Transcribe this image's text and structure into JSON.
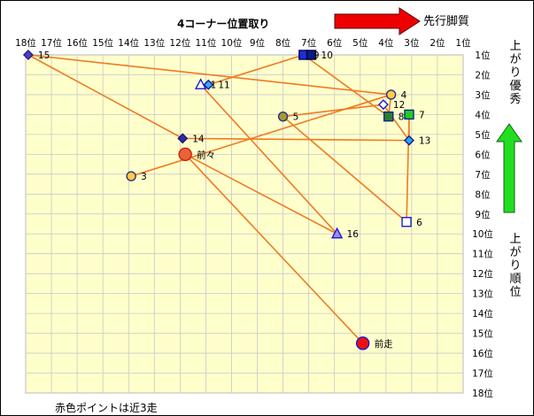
{
  "chart_data": {
    "type": "scatter",
    "title": "4コーナー位置取り",
    "x_axis": {
      "label": "先行脚質",
      "direction": "reversed",
      "ticks": [
        "18位",
        "17位",
        "16位",
        "15位",
        "14位",
        "13位",
        "12位",
        "11位",
        "10位",
        "9位",
        "8位",
        "7位",
        "6位",
        "5位",
        "4位",
        "3位",
        "2位",
        "1位"
      ],
      "range": [
        18,
        1
      ]
    },
    "y_axis": {
      "label_top": "上がり優秀",
      "label_bottom": "上がり順位",
      "direction": "reversed",
      "ticks": [
        "1位",
        "2位",
        "3位",
        "4位",
        "5位",
        "6位",
        "7位",
        "8位",
        "9位",
        "10位",
        "11位",
        "12位",
        "13位",
        "14位",
        "15位",
        "16位",
        "17位",
        "18位"
      ],
      "range": [
        1,
        18
      ]
    },
    "grid": true,
    "footnote": "赤色ポイントは近3走",
    "points": [
      {
        "label": "15",
        "x": 17.9,
        "y": 1.0,
        "marker": "diamond",
        "fill": "#4b3fbf",
        "stroke": "#2a2080"
      },
      {
        "label": "1",
        "x": 11.2,
        "y": 2.5,
        "marker": "triangle",
        "fill": "#ffffff",
        "stroke": "#1a1ad0"
      },
      {
        "label": "11",
        "x": 10.9,
        "y": 2.5,
        "marker": "diamond",
        "fill": "#33aaff",
        "stroke": "#1a1a90"
      },
      {
        "label": "9",
        "x": 7.2,
        "y": 1.0,
        "marker": "square",
        "fill": "#1a2fd0",
        "stroke": "#000066"
      },
      {
        "label": "10",
        "x": 6.9,
        "y": 1.0,
        "marker": "square",
        "fill": "#0a1a8a",
        "stroke": "#000033"
      },
      {
        "label": "4",
        "x": 3.8,
        "y": 3.0,
        "marker": "circle",
        "fill": "#ffcc44",
        "stroke": "#303080"
      },
      {
        "label": "12",
        "x": 4.1,
        "y": 3.5,
        "marker": "diamond",
        "fill": "#ffffff",
        "stroke": "#1a1ad0"
      },
      {
        "label": "8",
        "x": 3.9,
        "y": 4.1,
        "marker": "square",
        "fill": "#2e7d32",
        "stroke": "#0a2a80"
      },
      {
        "label": "7",
        "x": 3.1,
        "y": 4.0,
        "marker": "square",
        "fill": "#22cc22",
        "stroke": "#0a2a80"
      },
      {
        "label": "5",
        "x": 8.0,
        "y": 4.1,
        "marker": "circle",
        "fill": "#9e9e30",
        "stroke": "#303080"
      },
      {
        "label": "13",
        "x": 3.1,
        "y": 5.3,
        "marker": "diamond",
        "fill": "#22aaff",
        "stroke": "#1a1a90"
      },
      {
        "label": "14",
        "x": 11.9,
        "y": 5.2,
        "marker": "diamond",
        "fill": "#2b2bb0",
        "stroke": "#1a1a60"
      },
      {
        "label": "3",
        "x": 13.9,
        "y": 7.1,
        "marker": "circle",
        "fill": "#ffcc44",
        "stroke": "#303080"
      },
      {
        "label": "6",
        "x": 3.2,
        "y": 9.4,
        "marker": "square",
        "fill": "#ffffff",
        "stroke": "#1a1ad0"
      },
      {
        "label": "16",
        "x": 5.9,
        "y": 10.0,
        "marker": "triangle",
        "fill": "#9e8cff",
        "stroke": "#1a1ad0"
      },
      {
        "label": "前々",
        "x": 11.8,
        "y": 6.0,
        "marker": "circle-big",
        "fill": "#e8633a",
        "stroke": "#cc2200"
      },
      {
        "label": "前走",
        "x": 4.9,
        "y": 15.5,
        "marker": "circle-big",
        "fill": "#ee1111",
        "stroke": "#1a1ad0"
      }
    ],
    "lines": [
      [
        [
          17.9,
          1.0
        ],
        [
          3.8,
          3.0
        ]
      ],
      [
        [
          17.9,
          1.0
        ],
        [
          11.9,
          5.2
        ]
      ],
      [
        [
          11.9,
          5.2
        ],
        [
          3.1,
          5.3
        ]
      ],
      [
        [
          3.1,
          5.3
        ],
        [
          3.1,
          4.0
        ]
      ],
      [
        [
          3.1,
          4.0
        ],
        [
          3.2,
          9.4
        ]
      ],
      [
        [
          3.1,
          5.3
        ],
        [
          4.1,
          3.5
        ]
      ],
      [
        [
          4.1,
          3.5
        ],
        [
          8.0,
          4.1
        ]
      ],
      [
        [
          8.0,
          4.1
        ],
        [
          3.2,
          9.4
        ]
      ],
      [
        [
          3.8,
          3.0
        ],
        [
          13.9,
          7.1
        ]
      ],
      [
        [
          11.2,
          2.5
        ],
        [
          10.9,
          2.5
        ]
      ],
      [
        [
          10.9,
          2.5
        ],
        [
          7.2,
          1.0
        ]
      ],
      [
        [
          7.2,
          1.0
        ],
        [
          3.9,
          4.1
        ]
      ],
      [
        [
          3.9,
          4.1
        ],
        [
          3.8,
          3.0
        ]
      ],
      [
        [
          11.2,
          2.5
        ],
        [
          5.9,
          10.0
        ]
      ],
      [
        [
          11.8,
          6.0
        ],
        [
          5.9,
          10.0
        ]
      ],
      [
        [
          11.8,
          6.0
        ],
        [
          4.9,
          15.5
        ]
      ]
    ],
    "line_color": "#f07a22"
  }
}
